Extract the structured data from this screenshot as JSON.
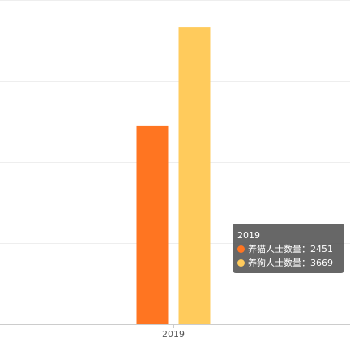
{
  "chart_data": {
    "type": "bar",
    "categories": [
      "2019"
    ],
    "series": [
      {
        "name": "养猫人士数量",
        "values": [
          2451
        ],
        "color": "#ff7521"
      },
      {
        "name": "养狗人士数量",
        "values": [
          3669
        ],
        "color": "#ffcb5c"
      }
    ],
    "ylim": [
      0,
      4000
    ],
    "grid": true,
    "title": "",
    "xlabel": "",
    "ylabel": ""
  },
  "tooltip": {
    "title": "2019",
    "rows": [
      {
        "label": "养猫人士数量：2451",
        "color": "#ff7521"
      },
      {
        "label": "养狗人士数量：3669",
        "color": "#ffcb5c"
      }
    ]
  }
}
